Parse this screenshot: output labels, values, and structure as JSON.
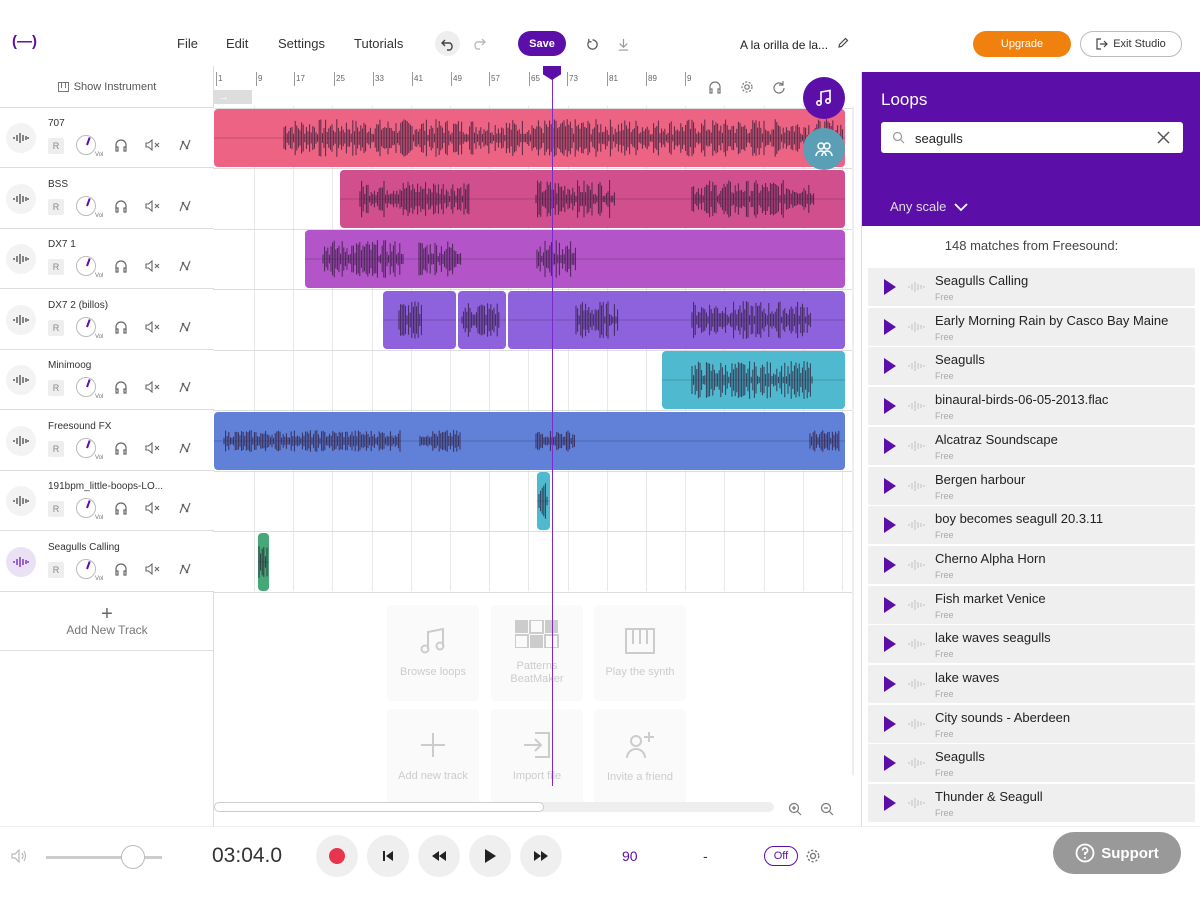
{
  "topbar": {
    "logo": "(—)",
    "menu": [
      "File",
      "Edit",
      "Settings",
      "Tutorials"
    ],
    "save_label": "Save",
    "project_title": "A la orilla de la...",
    "upgrade_label": "Upgrade",
    "exit_label": "Exit Studio"
  },
  "tracklist": {
    "show_instrument": "Show Instrument",
    "tracks": [
      {
        "name": "707",
        "r": "R",
        "vol": "Vol"
      },
      {
        "name": "BSS",
        "r": "R",
        "vol": "Vol"
      },
      {
        "name": "DX7 1",
        "r": "R",
        "vol": "Vol"
      },
      {
        "name": "DX7 2 (billos)",
        "r": "R",
        "vol": "Vol"
      },
      {
        "name": "Minimoog",
        "r": "R",
        "vol": "Vol"
      },
      {
        "name": "Freesound FX",
        "r": "R",
        "vol": "Vol"
      },
      {
        "name": "191bpm_little-boops-LO...",
        "r": "R",
        "vol": "Vol"
      },
      {
        "name": "Seagulls Calling",
        "r": "R",
        "vol": "Vol"
      }
    ],
    "add_track": "Add New Track"
  },
  "timeline": {
    "ruler": [
      "1",
      "9",
      "17",
      "25",
      "33",
      "41",
      "49",
      "57",
      "65",
      "73",
      "81",
      "89",
      "9"
    ],
    "loop_marker": "→",
    "start_tiles": [
      {
        "label": "Browse loops"
      },
      {
        "label": "Patterns BeatMaker"
      },
      {
        "label": "Play the synth"
      },
      {
        "label": "Add new track"
      },
      {
        "label": "Import file"
      },
      {
        "label": "Invite a friend"
      }
    ],
    "colors": {
      "track1": "#ec6384",
      "track2": "#d24f8e",
      "track3": "#b354c8",
      "track4": "#8e62dc",
      "track5": "#4fb9cf",
      "track6": "#6180d8",
      "track7": "#4fb9cf",
      "track8": "#47a877"
    }
  },
  "loops": {
    "title": "Loops",
    "search_value": "seagulls",
    "scale": "Any scale",
    "matches": "148 matches from Freesound:",
    "results": [
      {
        "name": "Seagulls Calling",
        "license": "Free"
      },
      {
        "name": "Early Morning Rain by Casco Bay Maine",
        "license": "Free"
      },
      {
        "name": "Seagulls",
        "license": "Free"
      },
      {
        "name": "binaural-birds-06-05-2013.flac",
        "license": "Free"
      },
      {
        "name": "Alcatraz Soundscape",
        "license": "Free"
      },
      {
        "name": "Bergen harbour",
        "license": "Free"
      },
      {
        "name": "boy becomes seagull 20.3.11",
        "license": "Free"
      },
      {
        "name": "Cherno Alpha Horn",
        "license": "Free"
      },
      {
        "name": "Fish market Venice",
        "license": "Free"
      },
      {
        "name": "lake waves seagulls",
        "license": "Free"
      },
      {
        "name": "lake waves",
        "license": "Free"
      },
      {
        "name": "City sounds - Aberdeen",
        "license": "Free"
      },
      {
        "name": "Seagulls",
        "license": "Free"
      },
      {
        "name": "Thunder & Seagull",
        "license": "Free"
      }
    ]
  },
  "transport": {
    "time": "03:04.0",
    "tempo": "90",
    "key": "-",
    "metronome": "Off",
    "support": "Support"
  },
  "accent": "#5b0fa8"
}
